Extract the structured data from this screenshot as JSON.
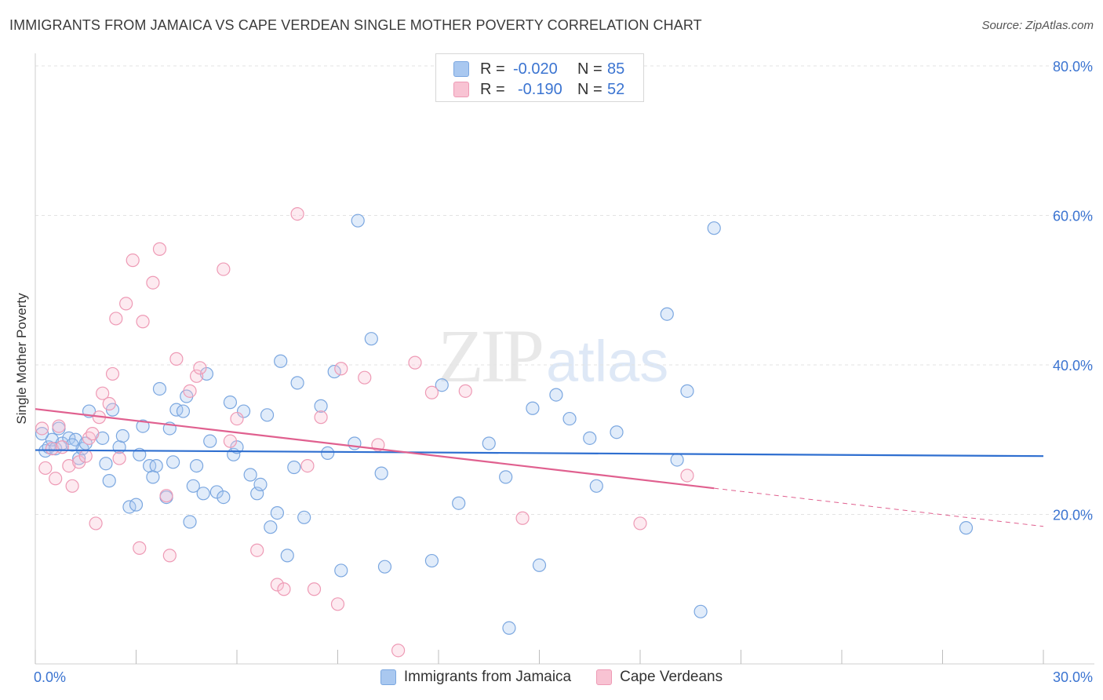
{
  "header": {
    "title": "IMMIGRANTS FROM JAMAICA VS CAPE VERDEAN SINGLE MOTHER POVERTY CORRELATION CHART",
    "source": "Source: ZipAtlas.com"
  },
  "watermark": {
    "zip": "ZIP",
    "atlas": "atlas"
  },
  "legend": {
    "r_label": "R =",
    "n_label": "N =",
    "rows": [
      {
        "r": "-0.020",
        "n": "85",
        "color": "#a9c8f0",
        "border": "#7ba7e0"
      },
      {
        "r": "-0.190",
        "n": "52",
        "color": "#f8c3d3",
        "border": "#ee9ab5"
      }
    ]
  },
  "chart_data": {
    "type": "scatter",
    "title": "IMMIGRANTS FROM JAMAICA VS CAPE VERDEAN SINGLE MOTHER POVERTY CORRELATION CHART",
    "xlabel": "",
    "ylabel": "Single Mother Poverty",
    "xlim": [
      0,
      30
    ],
    "ylim": [
      0,
      80
    ],
    "x_tick_labels": [
      "0.0%",
      "30.0%"
    ],
    "y_tick_values": [
      20,
      40,
      60,
      80
    ],
    "y_tick_labels": [
      "20.0%",
      "40.0%",
      "60.0%",
      "80.0%"
    ],
    "grid": true,
    "legend_position": "bottom",
    "series": [
      {
        "name": "Immigrants from Jamaica",
        "color": "#7ba7e0",
        "fill": "rgba(169,200,240,0.35)",
        "trend": {
          "x": [
            0,
            30
          ],
          "y": [
            28.6,
            27.8
          ]
        },
        "points": [
          [
            0.3,
            28.5
          ],
          [
            0.4,
            29
          ],
          [
            0.5,
            30
          ],
          [
            0.6,
            28.8
          ],
          [
            0.7,
            31.5
          ],
          [
            0.8,
            29.5
          ],
          [
            1.0,
            30.2
          ],
          [
            1.2,
            30
          ],
          [
            1.3,
            27.5
          ],
          [
            1.4,
            28.8
          ],
          [
            1.5,
            29.5
          ],
          [
            1.6,
            33.8
          ],
          [
            2.0,
            30.2
          ],
          [
            2.1,
            26.8
          ],
          [
            2.2,
            24.5
          ],
          [
            2.3,
            34
          ],
          [
            2.5,
            29
          ],
          [
            2.6,
            30.5
          ],
          [
            2.8,
            21
          ],
          [
            3.0,
            21.3
          ],
          [
            3.1,
            28
          ],
          [
            3.2,
            31.8
          ],
          [
            3.4,
            26.5
          ],
          [
            3.5,
            25
          ],
          [
            3.6,
            26.5
          ],
          [
            3.7,
            36.8
          ],
          [
            3.9,
            22.3
          ],
          [
            4.0,
            31.5
          ],
          [
            4.1,
            27
          ],
          [
            4.2,
            34
          ],
          [
            4.4,
            33.8
          ],
          [
            4.5,
            35.8
          ],
          [
            4.6,
            19
          ],
          [
            4.7,
            23.8
          ],
          [
            4.8,
            26.5
          ],
          [
            5.0,
            22.8
          ],
          [
            5.1,
            38.8
          ],
          [
            5.2,
            29.8
          ],
          [
            5.4,
            23
          ],
          [
            5.6,
            22.3
          ],
          [
            5.8,
            35
          ],
          [
            5.9,
            28
          ],
          [
            6.0,
            29
          ],
          [
            6.2,
            33.8
          ],
          [
            6.4,
            25.3
          ],
          [
            6.6,
            22.8
          ],
          [
            6.7,
            24
          ],
          [
            6.9,
            33.3
          ],
          [
            7.0,
            18.3
          ],
          [
            7.2,
            20.2
          ],
          [
            7.3,
            40.5
          ],
          [
            7.5,
            14.5
          ],
          [
            7.7,
            26.3
          ],
          [
            7.8,
            37.6
          ],
          [
            8.0,
            19.6
          ],
          [
            8.5,
            34.5
          ],
          [
            8.7,
            28.2
          ],
          [
            8.9,
            39.1
          ],
          [
            9.1,
            12.5
          ],
          [
            9.5,
            29.5
          ],
          [
            9.6,
            59.3
          ],
          [
            10.0,
            43.5
          ],
          [
            10.3,
            25.5
          ],
          [
            10.4,
            13
          ],
          [
            11.8,
            13.8
          ],
          [
            12.1,
            37.3
          ],
          [
            12.6,
            21.5
          ],
          [
            13.5,
            29.5
          ],
          [
            14.0,
            25
          ],
          [
            14.1,
            4.8
          ],
          [
            14.8,
            34.2
          ],
          [
            15.0,
            13.2
          ],
          [
            15.5,
            36
          ],
          [
            15.9,
            32.8
          ],
          [
            16.5,
            30.2
          ],
          [
            16.7,
            23.8
          ],
          [
            17.3,
            31
          ],
          [
            18.8,
            46.8
          ],
          [
            19.1,
            27.3
          ],
          [
            19.4,
            36.5
          ],
          [
            19.8,
            7
          ],
          [
            20.2,
            58.3
          ],
          [
            27.7,
            18.2
          ],
          [
            0.2,
            30.8
          ],
          [
            1.1,
            29.3
          ]
        ]
      },
      {
        "name": "Cape Verdeans",
        "color": "#ee9ab5",
        "fill": "rgba(248,195,211,0.35)",
        "trend": {
          "x": [
            0,
            20.2
          ],
          "y": [
            34.1,
            23.5
          ]
        },
        "trend_dashed": {
          "x": [
            20.2,
            30
          ],
          "y": [
            23.5,
            18.4
          ]
        },
        "points": [
          [
            0.2,
            31.5
          ],
          [
            0.3,
            26.2
          ],
          [
            0.5,
            28.8
          ],
          [
            0.6,
            24.8
          ],
          [
            0.7,
            31.8
          ],
          [
            0.8,
            29
          ],
          [
            1.0,
            26.5
          ],
          [
            1.1,
            23.8
          ],
          [
            1.3,
            27
          ],
          [
            1.5,
            27.8
          ],
          [
            1.6,
            30.2
          ],
          [
            1.7,
            30.8
          ],
          [
            1.8,
            18.8
          ],
          [
            1.9,
            33
          ],
          [
            2.0,
            36.2
          ],
          [
            2.2,
            34.8
          ],
          [
            2.3,
            38.8
          ],
          [
            2.4,
            46.2
          ],
          [
            2.5,
            27.5
          ],
          [
            2.7,
            48.2
          ],
          [
            2.9,
            54
          ],
          [
            3.1,
            15.5
          ],
          [
            3.2,
            45.8
          ],
          [
            3.5,
            51
          ],
          [
            3.7,
            55.5
          ],
          [
            3.9,
            22.5
          ],
          [
            4.0,
            14.5
          ],
          [
            4.2,
            40.8
          ],
          [
            4.6,
            36.5
          ],
          [
            4.8,
            38.5
          ],
          [
            4.9,
            39.6
          ],
          [
            5.6,
            52.8
          ],
          [
            5.8,
            29.8
          ],
          [
            6.0,
            32.8
          ],
          [
            6.6,
            15.2
          ],
          [
            7.2,
            10.6
          ],
          [
            7.4,
            10
          ],
          [
            7.8,
            60.2
          ],
          [
            8.1,
            26.5
          ],
          [
            8.3,
            10
          ],
          [
            8.5,
            33
          ],
          [
            9.0,
            8
          ],
          [
            9.1,
            39.5
          ],
          [
            9.8,
            38.3
          ],
          [
            10.2,
            29.3
          ],
          [
            10.8,
            1.8
          ],
          [
            11.3,
            40.3
          ],
          [
            11.8,
            36.3
          ],
          [
            12.8,
            36.5
          ],
          [
            14.5,
            19.5
          ],
          [
            18.0,
            18.8
          ],
          [
            19.4,
            25.2
          ]
        ]
      }
    ]
  },
  "bottom_legend": {
    "items": [
      {
        "label": "Immigrants from Jamaica",
        "color": "#a9c8f0",
        "border": "#7ba7e0"
      },
      {
        "label": "Cape Verdeans",
        "color": "#f8c3d3",
        "border": "#ee9ab5"
      }
    ]
  },
  "colors": {
    "blue_line": "#2f6fd0",
    "pink_line": "#e0608f",
    "tick_text": "#3b74d1"
  }
}
